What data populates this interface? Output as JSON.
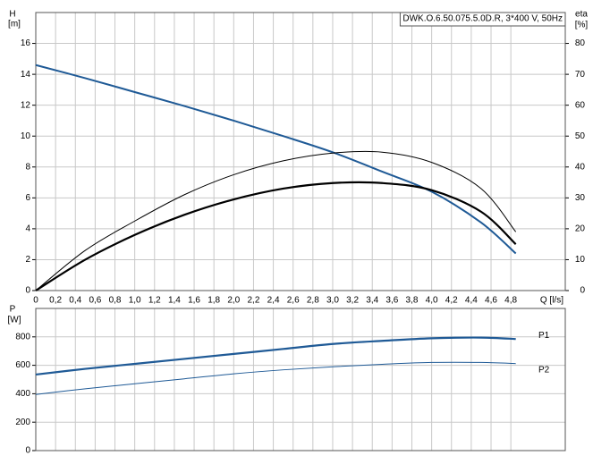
{
  "chart_data": [
    {
      "type": "line",
      "title": "DWK.O.6.50.075.5.0D.R, 3*400 V, 50Hz",
      "y_label": "H",
      "y_unit": "[m]",
      "y2_label": "eta",
      "y2_unit": "[%]",
      "x_label": "Q [l/s]",
      "x": [
        0,
        0.5,
        1,
        1.5,
        2,
        2.5,
        3,
        3.5,
        4,
        4.5,
        4.85
      ],
      "series": [
        {
          "color": "#1f5a96",
          "width": 2,
          "values": [
            14.6,
            13.75,
            12.85,
            11.95,
            11.0,
            10.0,
            8.95,
            7.7,
            6.4,
            4.4,
            2.4
          ]
        },
        {
          "color": "#000000",
          "width": 1,
          "axis": "y2",
          "values": [
            0,
            13,
            22.5,
            31,
            37.5,
            42,
            44.5,
            44.8,
            41.5,
            33,
            19
          ]
        },
        {
          "color": "#000000",
          "width": 2.2,
          "axis": "y2",
          "values": [
            0,
            10,
            18,
            24.5,
            29.5,
            33,
            34.8,
            34.8,
            32.5,
            25.5,
            15
          ]
        }
      ],
      "xlim": [
        0,
        5.35
      ],
      "xticks": [
        0,
        {
          "value": 0.2,
          "label": "0,2"
        },
        {
          "value": 0.4,
          "label": "0,4"
        },
        {
          "value": 0.6,
          "label": "0,6"
        },
        {
          "value": 0.8,
          "label": "0,8"
        },
        {
          "value": 1.0,
          "label": "1,0"
        },
        {
          "value": 1.2,
          "label": "1,2"
        },
        {
          "value": 1.4,
          "label": "1,4"
        },
        {
          "value": 1.6,
          "label": "1,6"
        },
        {
          "value": 1.8,
          "label": "1,8"
        },
        {
          "value": 2.0,
          "label": "2,0"
        },
        {
          "value": 2.2,
          "label": "2,2"
        },
        {
          "value": 2.4,
          "label": "2,4"
        },
        {
          "value": 2.6,
          "label": "2,6"
        },
        {
          "value": 2.8,
          "label": "2,8"
        },
        {
          "value": 3.0,
          "label": "3,0"
        },
        {
          "value": 3.2,
          "label": "3,2"
        },
        {
          "value": 3.4,
          "label": "3,4"
        },
        {
          "value": 3.6,
          "label": "3,6"
        },
        {
          "value": 3.8,
          "label": "3,8"
        },
        {
          "value": 4.0,
          "label": "4,0"
        },
        {
          "value": 4.2,
          "label": "4,2"
        },
        {
          "value": 4.4,
          "label": "4,4"
        },
        {
          "value": 4.6,
          "label": "4,6"
        },
        {
          "value": 4.8,
          "label": "4,8"
        }
      ],
      "ylim": [
        0,
        18
      ],
      "yticks": [
        0,
        2,
        4,
        6,
        8,
        10,
        12,
        14,
        16
      ],
      "y2lim": [
        0,
        90
      ],
      "y2ticks": [
        0,
        10,
        20,
        30,
        40,
        50,
        60,
        70,
        80
      ],
      "grid": true
    },
    {
      "type": "line",
      "y_label": "P",
      "y_unit": "[W]",
      "x": [
        0,
        0.5,
        1,
        1.5,
        2,
        2.5,
        3,
        3.5,
        4,
        4.5,
        4.85
      ],
      "series": [
        {
          "name": "P1",
          "color": "#1f5a96",
          "width": 2.2,
          "values": [
            535,
            575,
            610,
            645,
            680,
            715,
            750,
            772,
            790,
            795,
            785
          ]
        },
        {
          "name": "P2",
          "color": "#1f5a96",
          "width": 1,
          "values": [
            395,
            435,
            470,
            505,
            540,
            568,
            590,
            607,
            620,
            620,
            612
          ]
        }
      ],
      "xlim": [
        0,
        5.35
      ],
      "ylim": [
        0,
        1000
      ],
      "yticks": [
        0,
        200,
        400,
        600,
        800
      ],
      "grid": true
    }
  ]
}
